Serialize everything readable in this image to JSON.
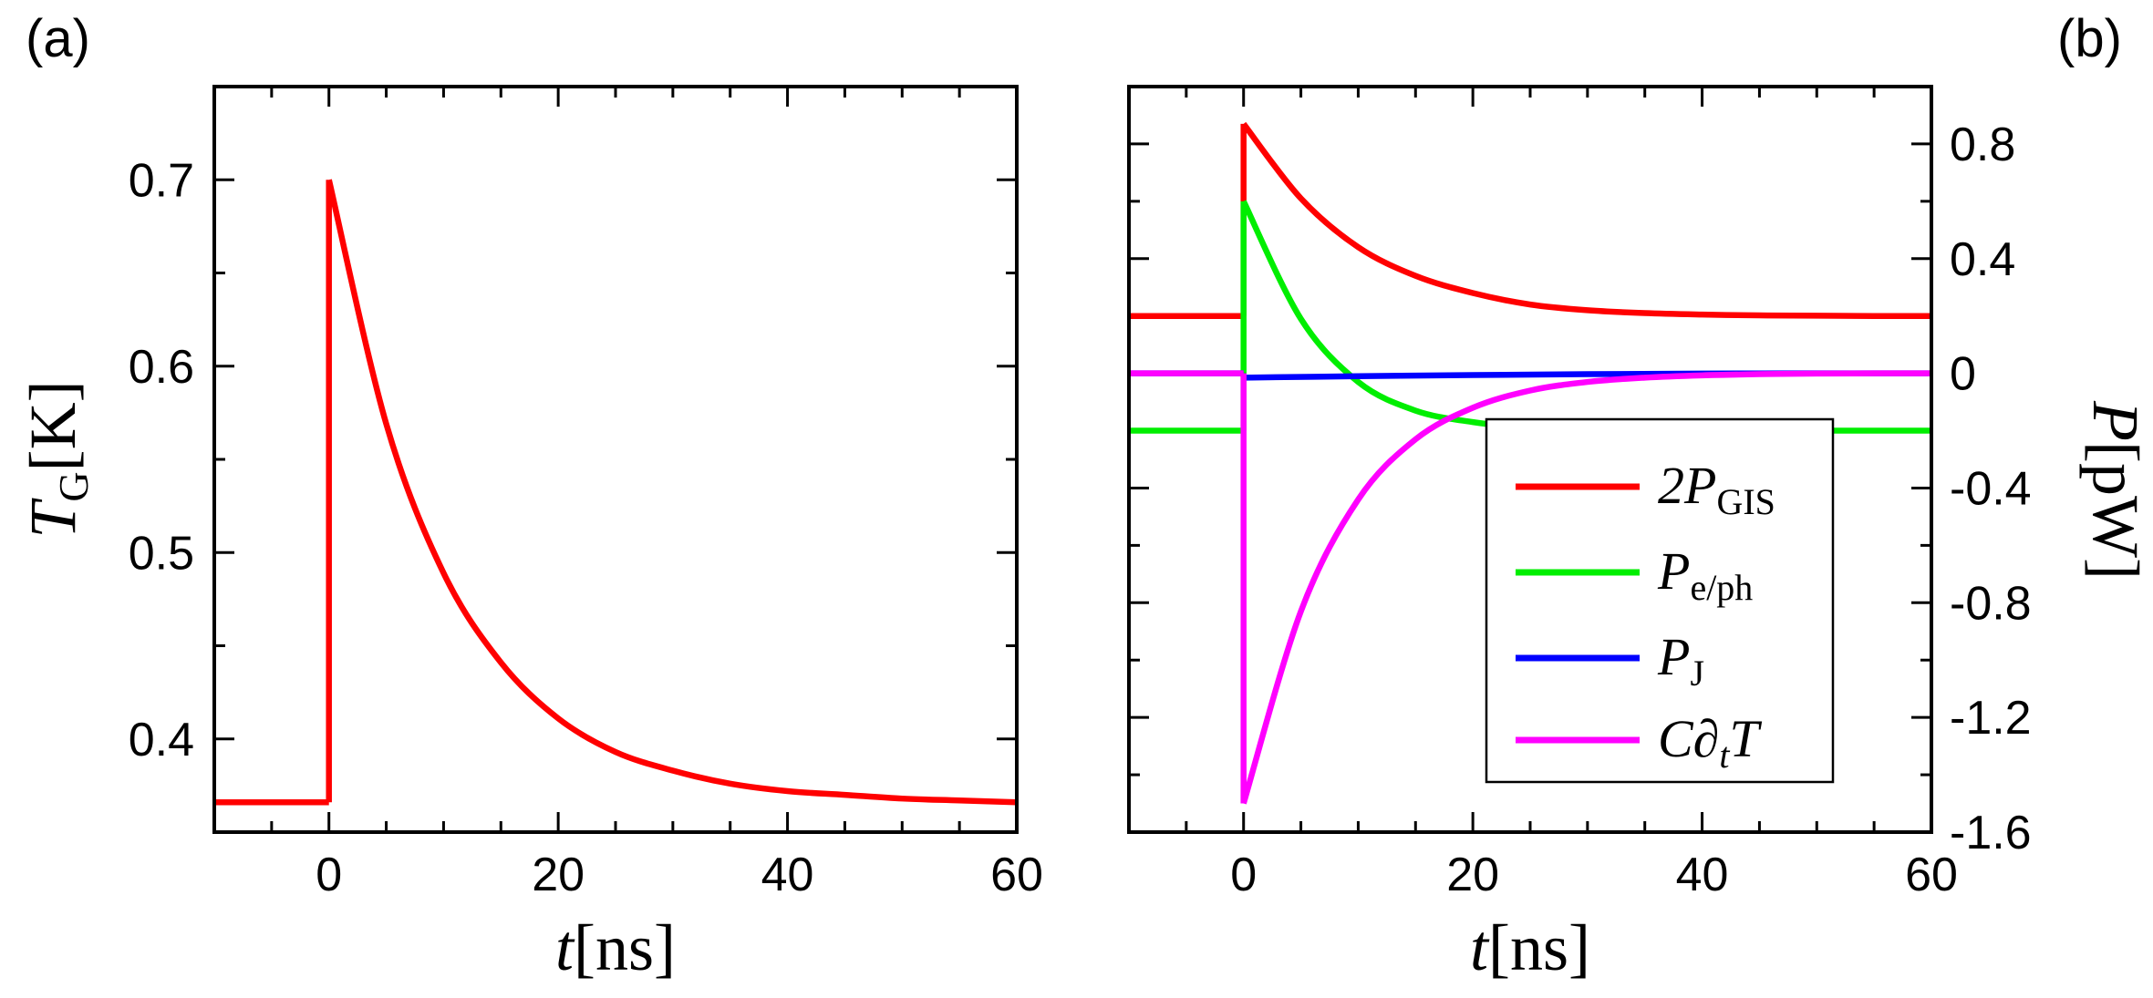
{
  "colors": {
    "red": "#ff0000",
    "green": "#00ee00",
    "blue": "#0000ff",
    "magenta": "#ff00ff",
    "axis": "#000000"
  },
  "chart_data": [
    {
      "id": "a",
      "type": "line",
      "panel_label": "(a)",
      "xlabel": {
        "var": "t",
        "unit_open": "[",
        "unit": "ns",
        "unit_close": "]"
      },
      "ylabel": {
        "var": "T",
        "sub": "G",
        "unit_open": "[",
        "unit": "K",
        "unit_close": "]"
      },
      "xlim": [
        -10,
        60
      ],
      "ylim": [
        0.35,
        0.75
      ],
      "xticks": [
        0,
        20,
        40,
        60
      ],
      "xtick_labels": [
        "0",
        "20",
        "40",
        "60"
      ],
      "yticks": [
        0.4,
        0.5,
        0.6,
        0.7
      ],
      "ytick_labels": [
        "0.4",
        "0.5",
        "0.6",
        "0.7"
      ],
      "series": [
        {
          "name": "T_G",
          "color": "#ff0000",
          "baseline": 0.366,
          "peak": 0.7,
          "tau": 10,
          "x": [
            -10,
            0,
            0,
            5,
            10,
            15,
            20,
            25,
            30,
            35,
            40,
            45,
            50,
            55,
            60
          ],
          "y": [
            0.366,
            0.366,
            0.7,
            0.569,
            0.489,
            0.441,
            0.411,
            0.393,
            0.383,
            0.376,
            0.372,
            0.37,
            0.368,
            0.367,
            0.366
          ]
        }
      ]
    },
    {
      "id": "b",
      "type": "line",
      "panel_label": "(b)",
      "xlabel": {
        "var": "t",
        "unit_open": "[",
        "unit": "ns",
        "unit_close": "]"
      },
      "ylabel": {
        "var": "P",
        "unit_open": "[",
        "unit": "pW",
        "unit_close": "]"
      },
      "y_axis_side": "right",
      "xlim": [
        -10,
        60
      ],
      "ylim": [
        -1.6,
        1.0
      ],
      "xticks": [
        0,
        20,
        40,
        60
      ],
      "xtick_labels": [
        "0",
        "20",
        "40",
        "60"
      ],
      "yticks": [
        0.8,
        0.4,
        0,
        -0.4,
        -0.8,
        -1.2,
        -1.6
      ],
      "ytick_labels": [
        "0.8",
        "0.4",
        "0",
        "-0.4",
        "-0.8",
        "-1.2",
        "-1.6"
      ],
      "legend_position": "lower-right",
      "series": [
        {
          "name": "2P_GIS",
          "legend_main": "2P",
          "legend_sub": "GIS",
          "color": "#ff0000",
          "x": [
            -10,
            0,
            0,
            5,
            10,
            15,
            20,
            25,
            30,
            35,
            40,
            45,
            50,
            55,
            60
          ],
          "y": [
            0.2,
            0.2,
            0.87,
            0.61,
            0.44,
            0.34,
            0.28,
            0.24,
            0.22,
            0.21,
            0.205,
            0.202,
            0.201,
            0.2,
            0.2
          ]
        },
        {
          "name": "P_e/ph",
          "legend_main": "P",
          "legend_sub": "e/ph",
          "color": "#00ee00",
          "x": [
            -10,
            0,
            0,
            5,
            10,
            15,
            20,
            25,
            30,
            35,
            40,
            45,
            50,
            55,
            60
          ],
          "y": [
            -0.2,
            -0.2,
            0.6,
            0.19,
            -0.03,
            -0.13,
            -0.17,
            -0.19,
            -0.195,
            -0.198,
            -0.2,
            -0.2,
            -0.2,
            -0.2,
            -0.2
          ]
        },
        {
          "name": "P_J",
          "legend_main": "P",
          "legend_sub": "J",
          "color": "#0000ff",
          "x": [
            -10,
            0,
            0,
            10,
            20,
            30,
            40,
            50,
            60
          ],
          "y": [
            0.0,
            0.0,
            -0.015,
            -0.01,
            -0.006,
            -0.003,
            -0.001,
            0.0,
            0.0
          ]
        },
        {
          "name": "C∂tT",
          "legend_main": "C∂",
          "legend_sub": "t",
          "legend_tail": "T",
          "color": "#ff00ff",
          "x": [
            -10,
            0,
            0,
            5,
            10,
            15,
            20,
            25,
            30,
            35,
            40,
            45,
            50,
            55,
            60
          ],
          "y": [
            0.0,
            0.0,
            -1.5,
            -0.83,
            -0.44,
            -0.23,
            -0.12,
            -0.06,
            -0.03,
            -0.015,
            -0.007,
            -0.003,
            -0.001,
            0.0,
            0.0
          ]
        }
      ]
    }
  ]
}
